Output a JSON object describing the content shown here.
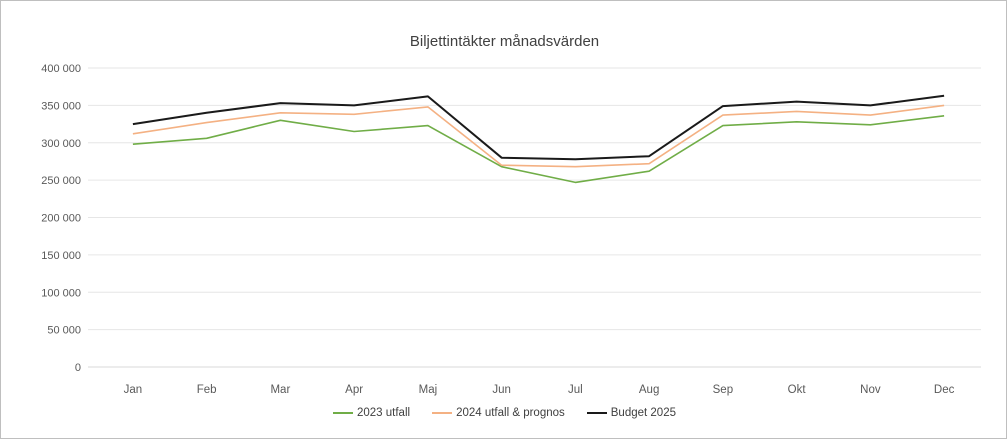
{
  "chart_data": {
    "type": "line",
    "title": "Biljettintäkter månadsvärden",
    "categories": [
      "Jan",
      "Feb",
      "Mar",
      "Apr",
      "Maj",
      "Jun",
      "Jul",
      "Aug",
      "Sep",
      "Okt",
      "Nov",
      "Dec"
    ],
    "y_ticks": [
      "0",
      "50 000",
      "100 000",
      "150 000",
      "200 000",
      "250 000",
      "300 000",
      "350 000",
      "400 000"
    ],
    "ylim": [
      0,
      400000
    ],
    "grid": true,
    "legend_position": "bottom",
    "series": [
      {
        "name": "2023 utfall",
        "color": "#70ad47",
        "values": [
          298000,
          306000,
          330000,
          315000,
          323000,
          268000,
          247000,
          262000,
          323000,
          328000,
          324000,
          336000
        ]
      },
      {
        "name": "2024 utfall & prognos",
        "color": "#f4b183",
        "values": [
          312000,
          327000,
          340000,
          338000,
          348000,
          270000,
          268000,
          272000,
          337000,
          342000,
          337000,
          350000
        ]
      },
      {
        "name": "Budget 2025",
        "color": "#1a1a1a",
        "values": [
          325000,
          340000,
          353000,
          350000,
          362000,
          280000,
          278000,
          282000,
          349000,
          355000,
          350000,
          363000
        ]
      }
    ]
  }
}
